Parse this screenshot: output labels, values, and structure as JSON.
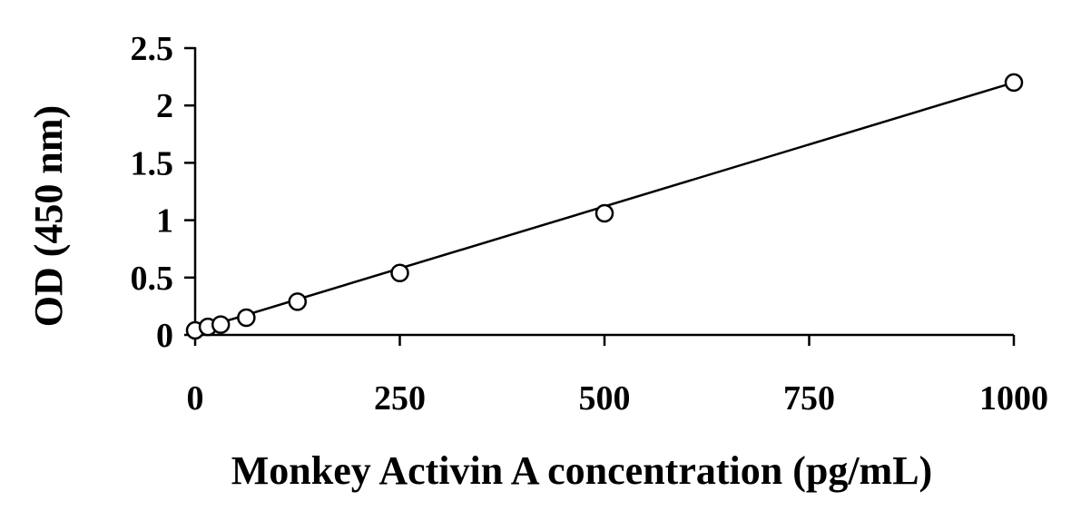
{
  "chart_data": {
    "type": "scatter",
    "title": "",
    "xlabel": "Monkey Activin A concentration (pg/mL)",
    "ylabel": "OD (450 nm)",
    "xlim": [
      0,
      1000
    ],
    "ylim": [
      0,
      2.5
    ],
    "x_ticks": [
      0,
      250,
      500,
      750,
      1000
    ],
    "x_tick_labels": [
      "0",
      "250",
      "500",
      "750",
      "1000"
    ],
    "y_ticks": [
      0,
      0.5,
      1,
      1.5,
      2,
      2.5
    ],
    "y_tick_labels": [
      "0",
      "0.5",
      "1",
      "1.5",
      "2",
      "2.5"
    ],
    "grid": false,
    "legend": "none",
    "series": [
      {
        "marker": "open-circle",
        "x": [
          0,
          15.6,
          31.25,
          62.5,
          125,
          250,
          500,
          1000
        ],
        "y": [
          0.04,
          0.07,
          0.09,
          0.15,
          0.29,
          0.54,
          1.06,
          2.2
        ]
      }
    ],
    "trendline": {
      "type": "linear",
      "x": [
        0,
        1000
      ],
      "y": [
        0.04,
        2.2
      ]
    },
    "colors": {
      "axis": "#000000",
      "marker_stroke": "#000000",
      "marker_fill": "#ffffff",
      "line": "#000000"
    }
  }
}
